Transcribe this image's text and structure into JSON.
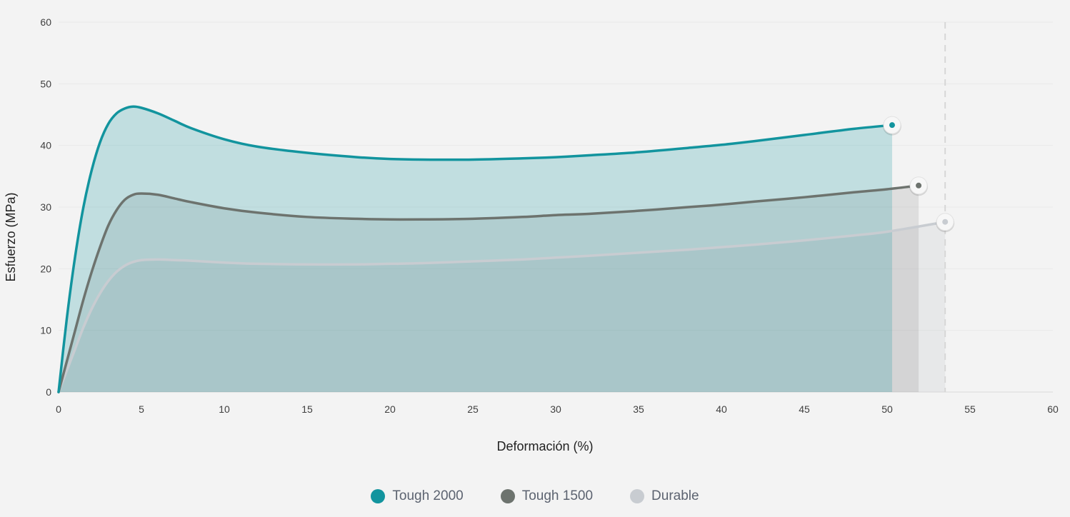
{
  "chart_data": {
    "type": "area",
    "xlabel": "Deformación (%)",
    "ylabel": "Esfuerzo (MPa)",
    "xlim": [
      0,
      60
    ],
    "ylim": [
      0,
      60
    ],
    "xticks": [
      0,
      5,
      10,
      15,
      20,
      25,
      30,
      35,
      40,
      45,
      50,
      55,
      60
    ],
    "yticks": [
      0,
      10,
      20,
      30,
      40,
      50,
      60
    ],
    "grid": true,
    "legend_position": "bottom-center",
    "series": [
      {
        "name": "Tough 2000",
        "color": "#12949e",
        "fill": "rgba(18,148,158,0.22)",
        "x": [
          0,
          0.5,
          1,
          1.5,
          2,
          2.5,
          3,
          3.5,
          4,
          4.5,
          5,
          6,
          7,
          8,
          10,
          12,
          15,
          18,
          20,
          22,
          25,
          28,
          30,
          32,
          35,
          38,
          40,
          42,
          45,
          48,
          50.3
        ],
        "y": [
          0,
          12,
          22,
          30,
          36,
          40.5,
          43.5,
          45.2,
          46.0,
          46.3,
          46.1,
          45.2,
          44.0,
          42.8,
          41.0,
          39.8,
          38.8,
          38.1,
          37.8,
          37.7,
          37.7,
          37.9,
          38.1,
          38.4,
          38.9,
          39.6,
          40.1,
          40.7,
          41.7,
          42.7,
          43.3
        ]
      },
      {
        "name": "Tough 1500",
        "color": "#6d736e",
        "fill": "rgba(109,115,110,0.16)",
        "x": [
          0,
          0.5,
          1,
          1.5,
          2,
          2.5,
          3,
          3.5,
          4,
          4.5,
          5,
          6,
          7,
          8,
          10,
          12,
          15,
          18,
          20,
          22,
          25,
          28,
          30,
          32,
          35,
          38,
          40,
          42,
          45,
          48,
          50,
          51.9
        ],
        "y": [
          0,
          5,
          10,
          15,
          19.5,
          23.5,
          27,
          29.5,
          31.2,
          32.0,
          32.2,
          32.0,
          31.4,
          30.8,
          29.8,
          29.1,
          28.4,
          28.1,
          28.0,
          28.0,
          28.1,
          28.4,
          28.7,
          28.9,
          29.4,
          30.0,
          30.4,
          30.9,
          31.6,
          32.4,
          32.9,
          33.5
        ]
      },
      {
        "name": "Durable",
        "color": "#c8ccd1",
        "fill": "rgba(200,204,209,0.28)",
        "x": [
          0,
          0.5,
          1,
          1.5,
          2,
          2.5,
          3,
          3.5,
          4,
          4.5,
          5,
          6,
          7,
          8,
          10,
          12,
          15,
          18,
          20,
          22,
          25,
          28,
          30,
          32,
          35,
          38,
          40,
          42,
          45,
          48,
          50,
          53.5
        ],
        "y": [
          0,
          3.5,
          7,
          10.5,
          13.5,
          16,
          18,
          19.5,
          20.5,
          21.1,
          21.4,
          21.5,
          21.4,
          21.3,
          21.0,
          20.8,
          20.7,
          20.7,
          20.8,
          20.9,
          21.2,
          21.5,
          21.8,
          22.1,
          22.6,
          23.1,
          23.5,
          23.9,
          24.6,
          25.4,
          26.0,
          27.6
        ]
      }
    ]
  },
  "legend": {
    "items": [
      {
        "label": "Tough 2000",
        "color": "#12949e"
      },
      {
        "label": "Tough 1500",
        "color": "#6d736e"
      },
      {
        "label": "Durable",
        "color": "#c8ccd1"
      }
    ]
  }
}
